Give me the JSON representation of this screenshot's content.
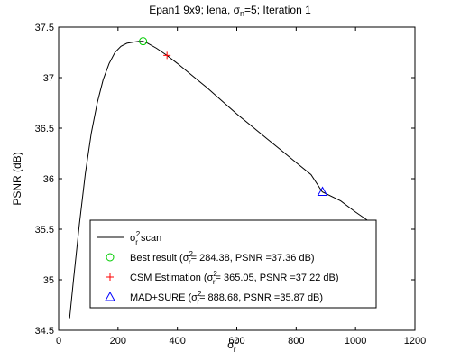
{
  "chart_data": {
    "type": "line",
    "title": {
      "prefix": "Epan1 9x9; lena, σ",
      "sub": "n",
      "suffix": "=5; Iteration 1"
    },
    "xlabel": {
      "base": "σ",
      "sup": "2",
      "sub": "r"
    },
    "ylabel": "PSNR (dB)",
    "xlim": [
      0,
      1200
    ],
    "ylim": [
      34.5,
      37.5
    ],
    "xticks": [
      0,
      200,
      400,
      600,
      800,
      1000,
      1200
    ],
    "yticks": [
      34.5,
      35,
      35.5,
      36,
      36.5,
      37,
      37.5
    ],
    "xtick_labels": [
      "0",
      "200",
      "400",
      "600",
      "800",
      "1000",
      "1200"
    ],
    "ytick_labels": [
      "34.5",
      "35",
      "35.5",
      "36",
      "36.5",
      "37",
      "37.5"
    ],
    "grid": false,
    "legend_position": "bottom-center",
    "series": [
      {
        "kind": "line",
        "color": "#000000",
        "x": [
          37,
          50,
          70,
          90,
          110,
          130,
          150,
          170,
          190,
          210,
          230,
          250,
          270,
          284,
          300,
          330,
          365,
          400,
          450,
          500,
          550,
          600,
          650,
          700,
          750,
          800,
          850,
          888,
          950,
          1000,
          1064
        ],
        "y": [
          34.62,
          35.0,
          35.55,
          36.05,
          36.45,
          36.75,
          36.98,
          37.14,
          37.25,
          37.31,
          37.34,
          37.35,
          37.36,
          37.36,
          37.34,
          37.29,
          37.22,
          37.14,
          37.02,
          36.9,
          36.77,
          36.64,
          36.52,
          36.4,
          36.28,
          36.16,
          36.04,
          35.87,
          35.78,
          35.67,
          35.54
        ],
        "legend": {
          "base": "σ",
          "sup": "2",
          "sub": "r",
          "text": " scan"
        }
      },
      {
        "kind": "marker",
        "marker": "circle",
        "color": "#00cc00",
        "x": 284.38,
        "y": 37.36,
        "legend": {
          "prefix": "Best result (",
          "base": "σ",
          "sup": "2",
          "sub": "r",
          "text": "= 284.38, PSNR =37.36 dB)"
        }
      },
      {
        "kind": "marker",
        "marker": "plus",
        "color": "#ff0000",
        "x": 365.05,
        "y": 37.22,
        "legend": {
          "prefix": "CSM Estimation (",
          "base": "σ",
          "sup": "2",
          "sub": "r",
          "text": "= 365.05, PSNR =37.22 dB)"
        }
      },
      {
        "kind": "marker",
        "marker": "triangle",
        "color": "#0000ff",
        "x": 888.68,
        "y": 35.87,
        "legend": {
          "prefix": "MAD+SURE (",
          "base": "σ",
          "sup": "2",
          "sub": "r",
          "text": "= 888.68, PSNR =35.87 dB)"
        }
      }
    ]
  }
}
